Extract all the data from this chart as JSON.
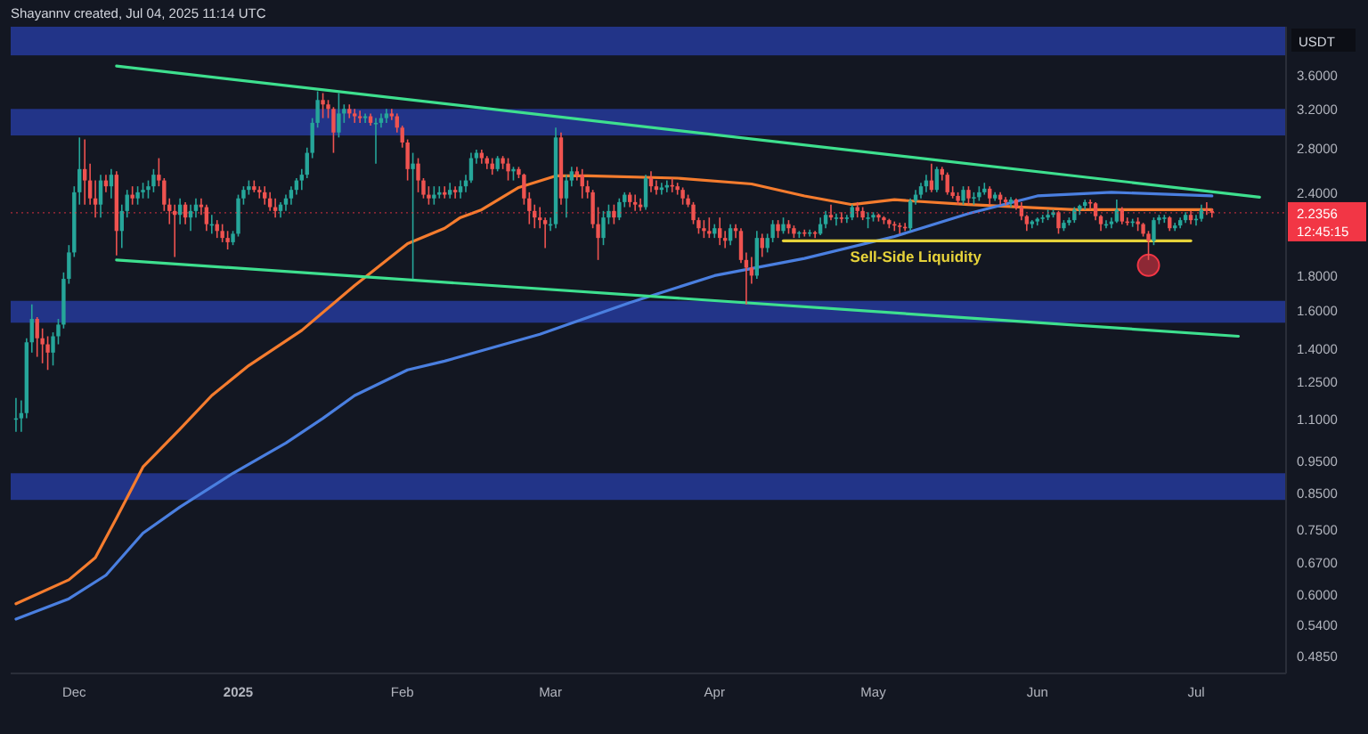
{
  "chart_data": {
    "type": "candlestick",
    "title": "Shayannv created, Jul 04, 2025 11:14 UTC",
    "ylabel": "USDT",
    "log": true,
    "xlim": [
      "2024-11-19",
      "2025-07-18"
    ],
    "xticks": [
      {
        "value": "2024-12-01",
        "label": "Dec"
      },
      {
        "value": "2025-01-01",
        "label": "2025"
      },
      {
        "value": "2025-02-01",
        "label": "Feb"
      },
      {
        "value": "2025-03-01",
        "label": "Mar"
      },
      {
        "value": "2025-04-01",
        "label": "Apr"
      },
      {
        "value": "2025-05-01",
        "label": "May"
      },
      {
        "value": "2025-06-01",
        "label": "Jun"
      },
      {
        "value": "2025-07-01",
        "label": "Jul"
      }
    ],
    "ylim": [
      0.456,
      4.25
    ],
    "yticks": [
      {
        "value": 0.485,
        "label": "0.4850"
      },
      {
        "value": 0.54,
        "label": "0.5400"
      },
      {
        "value": 0.6,
        "label": "0.6000"
      },
      {
        "value": 0.67,
        "label": "0.6700"
      },
      {
        "value": 0.75,
        "label": "0.7500"
      },
      {
        "value": 0.85,
        "label": "0.8500"
      },
      {
        "value": 0.95,
        "label": "0.9500"
      },
      {
        "value": 1.1,
        "label": "1.1000"
      },
      {
        "value": 1.25,
        "label": "1.2500"
      },
      {
        "value": 1.4,
        "label": "1.4000"
      },
      {
        "value": 1.6,
        "label": "1.6000"
      },
      {
        "value": 1.8,
        "label": "1.8000"
      },
      {
        "value": 2.4,
        "label": "2.4000"
      },
      {
        "value": 2.8,
        "label": "2.8000"
      },
      {
        "value": 3.2,
        "label": "3.2000"
      },
      {
        "value": 3.6,
        "label": "3.6000"
      }
    ],
    "bands": [
      {
        "axis": "y",
        "from": 3.85,
        "to": 4.25,
        "color": "#26399a"
      },
      {
        "axis": "y",
        "from": 2.92,
        "to": 3.2,
        "color": "#26399a"
      },
      {
        "axis": "y",
        "from": 1.53,
        "to": 1.65,
        "color": "#26399a"
      },
      {
        "axis": "y",
        "from": 0.83,
        "to": 0.91,
        "color": "#26399a"
      }
    ],
    "ref_lines": [
      {
        "axis": "y",
        "value": 2.2356,
        "label": "2.2356",
        "color": "#f23645"
      }
    ],
    "annotations": [
      "12:45:15"
    ],
    "x": [
      "2024-11-20",
      "2024-11-21",
      "2024-11-22",
      "2024-11-23",
      "2024-11-24",
      "2024-11-25",
      "2024-11-26",
      "2024-11-27",
      "2024-11-28",
      "2024-11-29",
      "2024-11-30",
      "2024-12-01",
      "2024-12-02",
      "2024-12-03",
      "2024-12-04",
      "2024-12-05",
      "2024-12-06",
      "2024-12-07",
      "2024-12-08",
      "2024-12-09",
      "2024-12-10",
      "2024-12-11",
      "2024-12-12",
      "2024-12-13",
      "2024-12-14",
      "2024-12-15",
      "2024-12-16",
      "2024-12-17",
      "2024-12-18",
      "2024-12-19",
      "2024-12-20",
      "2024-12-21",
      "2024-12-22",
      "2024-12-23",
      "2024-12-24",
      "2024-12-25",
      "2024-12-26",
      "2024-12-27",
      "2024-12-28",
      "2024-12-29",
      "2024-12-30",
      "2024-12-31",
      "2025-01-01",
      "2025-01-02",
      "2025-01-03",
      "2025-01-04",
      "2025-01-05",
      "2025-01-06",
      "2025-01-07",
      "2025-01-08",
      "2025-01-09",
      "2025-01-10",
      "2025-01-11",
      "2025-01-12",
      "2025-01-13",
      "2025-01-14",
      "2025-01-15",
      "2025-01-16",
      "2025-01-17",
      "2025-01-18",
      "2025-01-19",
      "2025-01-20",
      "2025-01-21",
      "2025-01-22",
      "2025-01-23",
      "2025-01-24",
      "2025-01-25",
      "2025-01-26",
      "2025-01-27",
      "2025-01-28",
      "2025-01-29",
      "2025-01-30",
      "2025-01-31",
      "2025-02-01",
      "2025-02-02",
      "2025-02-03",
      "2025-02-04",
      "2025-02-05",
      "2025-02-06",
      "2025-02-07",
      "2025-02-08",
      "2025-02-09",
      "2025-02-10",
      "2025-02-11",
      "2025-02-12",
      "2025-02-13",
      "2025-02-14",
      "2025-02-15",
      "2025-02-16",
      "2025-02-17",
      "2025-02-18",
      "2025-02-19",
      "2025-02-20",
      "2025-02-21",
      "2025-02-22",
      "2025-02-23",
      "2025-02-24",
      "2025-02-25",
      "2025-02-26",
      "2025-02-27",
      "2025-02-28",
      "2025-03-01",
      "2025-03-02",
      "2025-03-03",
      "2025-03-04",
      "2025-03-05",
      "2025-03-06",
      "2025-03-07",
      "2025-03-08",
      "2025-03-09",
      "2025-03-10",
      "2025-03-11",
      "2025-03-12",
      "2025-03-13",
      "2025-03-14",
      "2025-03-15",
      "2025-03-16",
      "2025-03-17",
      "2025-03-18",
      "2025-03-19",
      "2025-03-20",
      "2025-03-21",
      "2025-03-22",
      "2025-03-23",
      "2025-03-24",
      "2025-03-25",
      "2025-03-26",
      "2025-03-27",
      "2025-03-28",
      "2025-03-29",
      "2025-03-30",
      "2025-03-31",
      "2025-04-01",
      "2025-04-02",
      "2025-04-03",
      "2025-04-04",
      "2025-04-05",
      "2025-04-06",
      "2025-04-07",
      "2025-04-08",
      "2025-04-09",
      "2025-04-10",
      "2025-04-11",
      "2025-04-12",
      "2025-04-13",
      "2025-04-14",
      "2025-04-15",
      "2025-04-16",
      "2025-04-17",
      "2025-04-18",
      "2025-04-19",
      "2025-04-20",
      "2025-04-21",
      "2025-04-22",
      "2025-04-23",
      "2025-04-24",
      "2025-04-25",
      "2025-04-26",
      "2025-04-27",
      "2025-04-28",
      "2025-04-29",
      "2025-04-30",
      "2025-05-01",
      "2025-05-02",
      "2025-05-03",
      "2025-05-04",
      "2025-05-05",
      "2025-05-06",
      "2025-05-07",
      "2025-05-08",
      "2025-05-09",
      "2025-05-10",
      "2025-05-11",
      "2025-05-12",
      "2025-05-13",
      "2025-05-14",
      "2025-05-15",
      "2025-05-16",
      "2025-05-17",
      "2025-05-18",
      "2025-05-19",
      "2025-05-20",
      "2025-05-21",
      "2025-05-22",
      "2025-05-23",
      "2025-05-24",
      "2025-05-25",
      "2025-05-26",
      "2025-05-27",
      "2025-05-28",
      "2025-05-29",
      "2025-05-30",
      "2025-05-31",
      "2025-06-01",
      "2025-06-02",
      "2025-06-03",
      "2025-06-04",
      "2025-06-05",
      "2025-06-06",
      "2025-06-07",
      "2025-06-08",
      "2025-06-09",
      "2025-06-10",
      "2025-06-11",
      "2025-06-12",
      "2025-06-13",
      "2025-06-14",
      "2025-06-15",
      "2025-06-16",
      "2025-06-17",
      "2025-06-18",
      "2025-06-19",
      "2025-06-20",
      "2025-06-21",
      "2025-06-22",
      "2025-06-23",
      "2025-06-24",
      "2025-06-25",
      "2025-06-26",
      "2025-06-27",
      "2025-06-28",
      "2025-06-29",
      "2025-06-30",
      "2025-07-01",
      "2025-07-02",
      "2025-07-03",
      "2025-07-04"
    ],
    "ohlc": [
      [
        1.1,
        1.18,
        1.05,
        1.1
      ],
      [
        1.1,
        1.17,
        1.05,
        1.12
      ],
      [
        1.12,
        1.45,
        1.1,
        1.43
      ],
      [
        1.43,
        1.63,
        1.38,
        1.55
      ],
      [
        1.55,
        1.56,
        1.36,
        1.45
      ],
      [
        1.45,
        1.5,
        1.33,
        1.42
      ],
      [
        1.42,
        1.46,
        1.3,
        1.38
      ],
      [
        1.38,
        1.48,
        1.32,
        1.46
      ],
      [
        1.46,
        1.55,
        1.42,
        1.52
      ],
      [
        1.52,
        1.82,
        1.5,
        1.78
      ],
      [
        1.78,
        2.0,
        1.75,
        1.95
      ],
      [
        1.95,
        2.45,
        1.92,
        2.4
      ],
      [
        2.4,
        2.9,
        2.3,
        2.6
      ],
      [
        2.6,
        2.88,
        2.3,
        2.5
      ],
      [
        2.5,
        2.65,
        2.3,
        2.35
      ],
      [
        2.35,
        2.5,
        2.2,
        2.3
      ],
      [
        2.3,
        2.55,
        2.2,
        2.5
      ],
      [
        2.5,
        2.55,
        2.4,
        2.45
      ],
      [
        2.45,
        2.6,
        2.35,
        2.55
      ],
      [
        2.55,
        2.58,
        1.93,
        2.1
      ],
      [
        2.1,
        2.3,
        1.98,
        2.25
      ],
      [
        2.25,
        2.42,
        2.2,
        2.38
      ],
      [
        2.38,
        2.45,
        2.3,
        2.35
      ],
      [
        2.35,
        2.45,
        2.3,
        2.4
      ],
      [
        2.4,
        2.48,
        2.35,
        2.42
      ],
      [
        2.42,
        2.5,
        2.35,
        2.45
      ],
      [
        2.45,
        2.6,
        2.4,
        2.55
      ],
      [
        2.55,
        2.7,
        2.45,
        2.5
      ],
      [
        2.5,
        2.52,
        2.25,
        2.3
      ],
      [
        2.3,
        2.35,
        2.15,
        2.25
      ],
      [
        2.25,
        2.3,
        1.92,
        2.22
      ],
      [
        2.22,
        2.35,
        2.15,
        2.3
      ],
      [
        2.3,
        2.32,
        2.15,
        2.2
      ],
      [
        2.2,
        2.3,
        2.1,
        2.25
      ],
      [
        2.25,
        2.35,
        2.2,
        2.3
      ],
      [
        2.3,
        2.35,
        2.22,
        2.28
      ],
      [
        2.28,
        2.3,
        2.1,
        2.15
      ],
      [
        2.15,
        2.22,
        2.08,
        2.15
      ],
      [
        2.15,
        2.18,
        2.05,
        2.1
      ],
      [
        2.1,
        2.15,
        2.02,
        2.05
      ],
      [
        2.05,
        2.1,
        1.97,
        2.02
      ],
      [
        2.02,
        2.1,
        2.0,
        2.08
      ],
      [
        2.08,
        2.38,
        2.06,
        2.35
      ],
      [
        2.35,
        2.45,
        2.3,
        2.42
      ],
      [
        2.42,
        2.5,
        2.38,
        2.45
      ],
      [
        2.45,
        2.5,
        2.4,
        2.42
      ],
      [
        2.42,
        2.45,
        2.35,
        2.4
      ],
      [
        2.4,
        2.45,
        2.3,
        2.35
      ],
      [
        2.35,
        2.4,
        2.25,
        2.28
      ],
      [
        2.28,
        2.35,
        2.2,
        2.25
      ],
      [
        2.25,
        2.32,
        2.2,
        2.3
      ],
      [
        2.3,
        2.38,
        2.25,
        2.35
      ],
      [
        2.35,
        2.45,
        2.3,
        2.42
      ],
      [
        2.42,
        2.52,
        2.38,
        2.5
      ],
      [
        2.5,
        2.6,
        2.42,
        2.55
      ],
      [
        2.55,
        2.8,
        2.52,
        2.75
      ],
      [
        2.75,
        3.1,
        2.7,
        3.05
      ],
      [
        3.05,
        3.4,
        3.0,
        3.3
      ],
      [
        3.3,
        3.38,
        3.1,
        3.25
      ],
      [
        3.25,
        3.3,
        3.1,
        3.2
      ],
      [
        3.2,
        3.22,
        2.75,
        2.95
      ],
      [
        2.95,
        3.38,
        2.9,
        3.15
      ],
      [
        3.15,
        3.25,
        3.05,
        3.2
      ],
      [
        3.2,
        3.25,
        3.1,
        3.15
      ],
      [
        3.15,
        3.2,
        3.05,
        3.12
      ],
      [
        3.12,
        3.18,
        3.05,
        3.1
      ],
      [
        3.1,
        3.15,
        3.05,
        3.12
      ],
      [
        3.12,
        3.15,
        3.02,
        3.05
      ],
      [
        3.05,
        3.1,
        2.65,
        3.05
      ],
      [
        3.05,
        3.15,
        3.0,
        3.1
      ],
      [
        3.1,
        3.2,
        3.05,
        3.15
      ],
      [
        3.15,
        3.2,
        3.08,
        3.12
      ],
      [
        3.12,
        3.15,
        2.95,
        3.0
      ],
      [
        3.0,
        3.02,
        2.8,
        2.85
      ],
      [
        2.85,
        2.88,
        2.5,
        2.6
      ],
      [
        2.6,
        2.75,
        1.78,
        2.65
      ],
      [
        2.65,
        2.7,
        2.4,
        2.5
      ],
      [
        2.5,
        2.52,
        2.35,
        2.38
      ],
      [
        2.38,
        2.45,
        2.3,
        2.35
      ],
      [
        2.35,
        2.45,
        2.3,
        2.38
      ],
      [
        2.38,
        2.45,
        2.35,
        2.4
      ],
      [
        2.4,
        2.45,
        2.35,
        2.38
      ],
      [
        2.38,
        2.48,
        2.35,
        2.42
      ],
      [
        2.42,
        2.45,
        2.35,
        2.4
      ],
      [
        2.4,
        2.5,
        2.35,
        2.45
      ],
      [
        2.45,
        2.55,
        2.4,
        2.5
      ],
      [
        2.5,
        2.75,
        2.48,
        2.7
      ],
      [
        2.7,
        2.78,
        2.65,
        2.75
      ],
      [
        2.75,
        2.78,
        2.65,
        2.7
      ],
      [
        2.7,
        2.72,
        2.6,
        2.65
      ],
      [
        2.65,
        2.7,
        2.55,
        2.6
      ],
      [
        2.6,
        2.72,
        2.58,
        2.7
      ],
      [
        2.7,
        2.72,
        2.6,
        2.65
      ],
      [
        2.65,
        2.7,
        2.5,
        2.58
      ],
      [
        2.58,
        2.62,
        2.5,
        2.6
      ],
      [
        2.6,
        2.62,
        2.52,
        2.55
      ],
      [
        2.55,
        2.56,
        2.3,
        2.35
      ],
      [
        2.35,
        2.4,
        2.15,
        2.25
      ],
      [
        2.25,
        2.3,
        2.12,
        2.2
      ],
      [
        2.2,
        2.28,
        2.12,
        2.18
      ],
      [
        2.18,
        2.2,
        1.98,
        2.15
      ],
      [
        2.15,
        2.2,
        2.1,
        2.15
      ],
      [
        2.15,
        3.0,
        2.12,
        2.9
      ],
      [
        2.9,
        2.95,
        2.3,
        2.35
      ],
      [
        2.35,
        2.55,
        2.2,
        2.5
      ],
      [
        2.5,
        2.62,
        2.45,
        2.58
      ],
      [
        2.58,
        2.62,
        2.5,
        2.55
      ],
      [
        2.55,
        2.6,
        2.35,
        2.45
      ],
      [
        2.45,
        2.5,
        2.35,
        2.4
      ],
      [
        2.4,
        2.42,
        2.12,
        2.15
      ],
      [
        2.15,
        2.28,
        1.9,
        2.05
      ],
      [
        2.05,
        2.25,
        2.0,
        2.2
      ],
      [
        2.2,
        2.3,
        2.15,
        2.25
      ],
      [
        2.25,
        2.3,
        2.15,
        2.2
      ],
      [
        2.2,
        2.35,
        2.18,
        2.32
      ],
      [
        2.32,
        2.4,
        2.28,
        2.38
      ],
      [
        2.38,
        2.4,
        2.28,
        2.32
      ],
      [
        2.32,
        2.38,
        2.25,
        2.3
      ],
      [
        2.3,
        2.35,
        2.25,
        2.28
      ],
      [
        2.28,
        2.55,
        2.26,
        2.52
      ],
      [
        2.52,
        2.58,
        2.4,
        2.45
      ],
      [
        2.45,
        2.5,
        2.38,
        2.42
      ],
      [
        2.42,
        2.48,
        2.38,
        2.44
      ],
      [
        2.44,
        2.5,
        2.4,
        2.46
      ],
      [
        2.46,
        2.52,
        2.4,
        2.45
      ],
      [
        2.45,
        2.48,
        2.38,
        2.42
      ],
      [
        2.42,
        2.44,
        2.3,
        2.35
      ],
      [
        2.35,
        2.38,
        2.28,
        2.3
      ],
      [
        2.3,
        2.32,
        2.15,
        2.18
      ],
      [
        2.18,
        2.2,
        2.08,
        2.12
      ],
      [
        2.12,
        2.18,
        2.05,
        2.1
      ],
      [
        2.1,
        2.2,
        2.05,
        2.08
      ],
      [
        2.08,
        2.15,
        2.05,
        2.12
      ],
      [
        2.12,
        2.2,
        2.0,
        2.05
      ],
      [
        2.05,
        2.1,
        1.98,
        2.03
      ],
      [
        2.03,
        2.15,
        2.0,
        2.12
      ],
      [
        2.12,
        2.15,
        2.05,
        2.1
      ],
      [
        2.1,
        2.12,
        1.88,
        1.9
      ],
      [
        1.9,
        1.95,
        1.63,
        1.85
      ],
      [
        1.85,
        1.92,
        1.75,
        1.8
      ],
      [
        1.8,
        2.1,
        1.78,
        2.05
      ],
      [
        2.05,
        2.08,
        1.92,
        1.98
      ],
      [
        1.98,
        2.08,
        1.95,
        2.05
      ],
      [
        2.05,
        2.18,
        2.02,
        2.15
      ],
      [
        2.15,
        2.18,
        2.05,
        2.1
      ],
      [
        2.1,
        2.2,
        2.08,
        2.15
      ],
      [
        2.15,
        2.18,
        2.08,
        2.12
      ],
      [
        2.12,
        2.14,
        2.05,
        2.08
      ],
      [
        2.08,
        2.1,
        2.05,
        2.09
      ],
      [
        2.09,
        2.11,
        2.06,
        2.08
      ],
      [
        2.08,
        2.11,
        2.06,
        2.09
      ],
      [
        2.09,
        2.1,
        2.05,
        2.08
      ],
      [
        2.08,
        2.2,
        2.07,
        2.15
      ],
      [
        2.15,
        2.25,
        2.12,
        2.22
      ],
      [
        2.22,
        2.3,
        2.18,
        2.2
      ],
      [
        2.2,
        2.23,
        2.14,
        2.2
      ],
      [
        2.2,
        2.24,
        2.16,
        2.19
      ],
      [
        2.19,
        2.22,
        2.16,
        2.2
      ],
      [
        2.2,
        2.3,
        2.18,
        2.28
      ],
      [
        2.28,
        2.32,
        2.2,
        2.25
      ],
      [
        2.25,
        2.28,
        2.18,
        2.2
      ],
      [
        2.2,
        2.24,
        2.12,
        2.2
      ],
      [
        2.2,
        2.24,
        2.17,
        2.22
      ],
      [
        2.22,
        2.23,
        2.17,
        2.2
      ],
      [
        2.2,
        2.21,
        2.15,
        2.18
      ],
      [
        2.18,
        2.19,
        2.12,
        2.15
      ],
      [
        2.15,
        2.17,
        2.1,
        2.14
      ],
      [
        2.14,
        2.16,
        2.08,
        2.13
      ],
      [
        2.13,
        2.16,
        2.1,
        2.12
      ],
      [
        2.12,
        2.35,
        2.1,
        2.33
      ],
      [
        2.33,
        2.42,
        2.3,
        2.38
      ],
      [
        2.38,
        2.48,
        2.35,
        2.45
      ],
      [
        2.45,
        2.55,
        2.4,
        2.5
      ],
      [
        2.5,
        2.65,
        2.4,
        2.42
      ],
      [
        2.42,
        2.62,
        2.4,
        2.6
      ],
      [
        2.6,
        2.62,
        2.5,
        2.55
      ],
      [
        2.55,
        2.57,
        2.38,
        2.4
      ],
      [
        2.4,
        2.45,
        2.35,
        2.37
      ],
      [
        2.37,
        2.4,
        2.3,
        2.33
      ],
      [
        2.33,
        2.45,
        2.3,
        2.42
      ],
      [
        2.42,
        2.45,
        2.3,
        2.35
      ],
      [
        2.35,
        2.4,
        2.3,
        2.36
      ],
      [
        2.36,
        2.45,
        2.33,
        2.4
      ],
      [
        2.4,
        2.48,
        2.38,
        2.43
      ],
      [
        2.43,
        2.45,
        2.3,
        2.35
      ],
      [
        2.35,
        2.4,
        2.33,
        2.38
      ],
      [
        2.38,
        2.4,
        2.3,
        2.34
      ],
      [
        2.34,
        2.36,
        2.3,
        2.32
      ],
      [
        2.32,
        2.36,
        2.28,
        2.34
      ],
      [
        2.34,
        2.35,
        2.26,
        2.28
      ],
      [
        2.28,
        2.32,
        2.18,
        2.21
      ],
      [
        2.21,
        2.22,
        2.1,
        2.15
      ],
      [
        2.15,
        2.18,
        2.12,
        2.17
      ],
      [
        2.17,
        2.2,
        2.14,
        2.19
      ],
      [
        2.19,
        2.22,
        2.16,
        2.2
      ],
      [
        2.2,
        2.26,
        2.18,
        2.22
      ],
      [
        2.22,
        2.26,
        2.2,
        2.24
      ],
      [
        2.24,
        2.25,
        2.08,
        2.12
      ],
      [
        2.12,
        2.18,
        2.1,
        2.16
      ],
      [
        2.16,
        2.2,
        2.14,
        2.18
      ],
      [
        2.18,
        2.28,
        2.16,
        2.26
      ],
      [
        2.26,
        2.3,
        2.22,
        2.29
      ],
      [
        2.29,
        2.34,
        2.26,
        2.32
      ],
      [
        2.32,
        2.34,
        2.26,
        2.31
      ],
      [
        2.31,
        2.32,
        2.18,
        2.21
      ],
      [
        2.21,
        2.22,
        2.1,
        2.15
      ],
      [
        2.15,
        2.18,
        2.12,
        2.15
      ],
      [
        2.15,
        2.2,
        2.12,
        2.17
      ],
      [
        2.17,
        2.34,
        2.16,
        2.26
      ],
      [
        2.26,
        2.28,
        2.15,
        2.17
      ],
      [
        2.17,
        2.2,
        2.14,
        2.16
      ],
      [
        2.16,
        2.19,
        2.13,
        2.17
      ],
      [
        2.17,
        2.2,
        2.1,
        2.15
      ],
      [
        2.15,
        2.16,
        2.06,
        2.08
      ],
      [
        2.08,
        2.1,
        1.9,
        2.03
      ],
      [
        2.03,
        2.2,
        2.0,
        2.18
      ],
      [
        2.18,
        2.22,
        2.15,
        2.2
      ],
      [
        2.2,
        2.22,
        2.16,
        2.2
      ],
      [
        2.2,
        2.21,
        2.1,
        2.12
      ],
      [
        2.12,
        2.16,
        2.1,
        2.14
      ],
      [
        2.14,
        2.2,
        2.12,
        2.18
      ],
      [
        2.18,
        2.24,
        2.16,
        2.22
      ],
      [
        2.22,
        2.25,
        2.15,
        2.18
      ],
      [
        2.18,
        2.22,
        2.14,
        2.19
      ],
      [
        2.19,
        2.3,
        2.17,
        2.26
      ],
      [
        2.26,
        2.32,
        2.22,
        2.25
      ],
      [
        2.25,
        2.27,
        2.2,
        2.2356
      ]
    ],
    "series": [
      {
        "type": "line",
        "color": "#f57c2e",
        "x": [
          "2024-11-20",
          "2024-11-30",
          "2024-12-05",
          "2024-12-09",
          "2024-12-14",
          "2024-12-21",
          "2024-12-27",
          "2025-01-03",
          "2025-01-13",
          "2025-01-23",
          "2025-02-02",
          "2025-02-09",
          "2025-02-12",
          "2025-02-16",
          "2025-02-23",
          "2025-03-02",
          "2025-03-08",
          "2025-03-25",
          "2025-04-08",
          "2025-04-18",
          "2025-04-27",
          "2025-05-05",
          "2025-05-08",
          "2025-05-19",
          "2025-06-08",
          "2025-07-04"
        ],
        "values": [
          0.58,
          0.63,
          0.68,
          0.78,
          0.93,
          1.06,
          1.19,
          1.32,
          1.49,
          1.74,
          2.01,
          2.12,
          2.2,
          2.26,
          2.44,
          2.54,
          2.54,
          2.52,
          2.47,
          2.37,
          2.3,
          2.34,
          2.33,
          2.3,
          2.26,
          2.26
        ]
      },
      {
        "type": "line",
        "color": "#4a7fe0",
        "x": [
          "2024-11-20",
          "2024-11-30",
          "2024-12-07",
          "2024-12-14",
          "2024-12-21",
          "2024-12-31",
          "2025-01-10",
          "2025-01-17",
          "2025-01-23",
          "2025-02-02",
          "2025-02-09",
          "2025-02-27",
          "2025-03-16",
          "2025-04-01",
          "2025-04-18",
          "2025-05-05",
          "2025-05-19",
          "2025-06-01",
          "2025-06-15",
          "2025-07-04"
        ],
        "values": [
          0.55,
          0.59,
          0.64,
          0.74,
          0.81,
          0.91,
          1.01,
          1.1,
          1.19,
          1.3,
          1.34,
          1.47,
          1.64,
          1.8,
          1.91,
          2.06,
          2.23,
          2.37,
          2.4,
          2.37
        ]
      },
      {
        "type": "line",
        "color": "#3ee08f",
        "x": [
          "2024-12-09",
          "2025-07-13"
        ],
        "values": [
          3.71,
          2.36
        ]
      },
      {
        "type": "line",
        "color": "#3ee08f",
        "x": [
          "2024-12-09",
          "2025-07-09"
        ],
        "values": [
          1.9,
          1.46
        ]
      },
      {
        "type": "line",
        "name": "Sell-Side Liquidity",
        "color": "#e6d23a",
        "x": [
          "2025-04-14",
          "2025-06-30"
        ],
        "values": [
          2.03,
          2.03
        ]
      }
    ]
  }
}
